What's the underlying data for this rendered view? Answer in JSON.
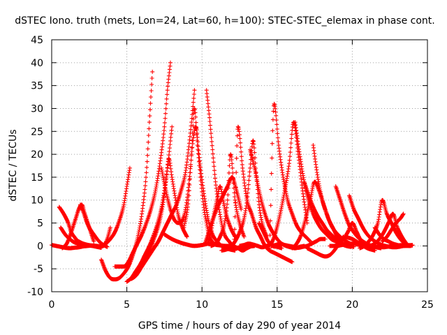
{
  "chart_data": {
    "type": "scatter",
    "title": "dSTEC Iono. truth (mets, Lon=24, Lat=60, h=100): STEC-STEC_elemax in phase cont.",
    "xlabel": "GPS time / hours of day 290 of year 2014",
    "ylabel": "dSTEC  / TECUs",
    "xlim": [
      0,
      25
    ],
    "ylim": [
      -10,
      45
    ],
    "xticks": [
      "0",
      "5",
      "10",
      "15",
      "20",
      "25"
    ],
    "yticks": [
      "-10",
      "-5",
      "0",
      "5",
      "10",
      "15",
      "20",
      "25",
      "30",
      "35",
      "40",
      "45"
    ],
    "grid": true,
    "marker": "+",
    "color": "#ff0000",
    "series": [
      {
        "x": [
          0.0,
          0.3,
          0.6,
          0.9,
          1.2,
          1.5,
          1.8,
          2.1,
          2.4,
          2.7,
          3.0,
          3.3,
          3.6,
          3.9,
          4.2,
          4.5,
          4.8,
          5.0,
          5.2
        ],
        "y": [
          0.2,
          0.0,
          -0.2,
          -0.4,
          -0.5,
          -0.4,
          -0.3,
          -0.1,
          0.0,
          0.1,
          0.0,
          -0.1,
          0.5,
          1.5,
          3,
          5.5,
          9,
          13,
          17
        ]
      },
      {
        "x": [
          0.5,
          0.8,
          1.1,
          1.3,
          1.5,
          1.7,
          1.9,
          2.1,
          2.3,
          2.6,
          2.9,
          3.2,
          3.5,
          3.7,
          3.9
        ],
        "y": [
          8.5,
          7,
          5,
          3,
          2,
          1.2,
          0.8,
          0.5,
          0.3,
          0.1,
          0.0,
          -0.1,
          0.2,
          1.5,
          4
        ]
      },
      {
        "x": [
          0.6,
          0.9,
          1.2,
          1.5,
          1.8,
          2.1,
          2.4,
          2.7,
          3.0,
          3.3
        ],
        "y": [
          4,
          2.5,
          1.5,
          0.8,
          0.5,
          0.3,
          0.1,
          0.0,
          -0.2,
          -0.4
        ]
      },
      {
        "x": [
          0.7,
          1.0,
          1.3,
          1.6,
          1.8,
          2.0,
          2.2,
          2.5,
          2.8
        ],
        "y": [
          -0.5,
          0.5,
          3,
          6,
          8,
          9,
          7,
          4,
          1
        ]
      },
      {
        "x": [
          1.9,
          2.1,
          2.3,
          2.5,
          2.8,
          3.1,
          3.4,
          3.7
        ],
        "y": [
          9,
          7.5,
          5.5,
          4,
          2.5,
          1.2,
          0.3,
          -0.2
        ]
      },
      {
        "x": [
          3.3,
          3.6,
          3.9,
          4.2,
          4.5,
          4.8,
          5.1,
          5.4,
          5.7,
          6.0,
          6.3,
          6.5,
          6.7
        ],
        "y": [
          -3,
          -5.5,
          -7,
          -7.3,
          -7,
          -6,
          -4.5,
          -2,
          1.5,
          7,
          16,
          27,
          38
        ]
      },
      {
        "x": [
          4.2,
          4.5,
          4.8,
          5.1,
          5.4,
          5.7,
          6.0,
          6.3,
          6.6,
          6.9,
          7.2,
          7.5,
          7.7,
          7.9
        ],
        "y": [
          -4.5,
          -4.5,
          -4.5,
          -3.5,
          -1.5,
          0.5,
          2.5,
          5,
          8,
          12,
          18,
          26,
          34,
          40
        ]
      },
      {
        "x": [
          5.0,
          5.3,
          5.6,
          5.9,
          6.2,
          6.5,
          6.8,
          7.1,
          7.4,
          7.7,
          8.0
        ],
        "y": [
          -7.8,
          -7,
          -5.5,
          -4,
          -2,
          0,
          2.5,
          5.5,
          10,
          17,
          26
        ]
      },
      {
        "x": [
          5.3,
          5.6,
          5.9,
          6.2,
          6.5,
          6.8,
          7.1,
          7.4,
          7.7,
          8.0,
          8.3,
          8.6,
          8.9,
          9.1,
          9.3,
          9.5
        ],
        "y": [
          -7.2,
          -6.5,
          -5,
          -3.5,
          -2,
          -0.5,
          1,
          3,
          5,
          7,
          9,
          12,
          16,
          21,
          27,
          34
        ]
      },
      {
        "x": [
          5.6,
          5.9,
          6.2,
          6.5,
          6.8,
          7.1,
          7.4,
          7.6,
          7.8,
          8.0,
          8.2,
          8.4,
          8.7,
          9.0
        ],
        "y": [
          -6.5,
          -5,
          -3,
          -1,
          1.5,
          4.5,
          9,
          14,
          19,
          15,
          11,
          7,
          4,
          2
        ]
      },
      {
        "x": [
          7.3,
          7.6,
          7.9,
          8.2,
          8.5,
          8.8,
          9.0,
          9.2,
          9.4,
          9.6,
          9.8,
          10.1,
          10.4,
          10.7,
          11.0,
          11.3,
          11.6,
          11.9,
          12.2
        ],
        "y": [
          17,
          12,
          8,
          5.5,
          5,
          6.5,
          10,
          16,
          23,
          26,
          20,
          12,
          6,
          2.5,
          1,
          0,
          -0.5,
          -0.8,
          -1
        ]
      },
      {
        "x": [
          7.5,
          8.0,
          8.5,
          9.0,
          9.5,
          10.0,
          10.5,
          11.0,
          11.5,
          12.0,
          12.5,
          13.0,
          13.5
        ],
        "y": [
          2.5,
          1.5,
          0.8,
          0.3,
          0.0,
          0.2,
          0.5,
          0.2,
          0.0,
          -0.3,
          -0.5,
          -0.2,
          0.0
        ]
      },
      {
        "x": [
          8.8,
          9.1,
          9.3,
          9.5,
          9.7,
          9.9,
          10.1,
          10.3,
          10.5,
          10.8
        ],
        "y": [
          4,
          10,
          20,
          30,
          22,
          15,
          9,
          5,
          2,
          0.5
        ]
      },
      {
        "x": [
          10.3,
          10.5,
          10.7,
          10.9,
          11.1,
          11.3,
          11.5,
          11.8,
          12.1,
          12.4,
          12.7,
          13.0,
          13.3
        ],
        "y": [
          34,
          28,
          21,
          14,
          9,
          5,
          2.5,
          1,
          0,
          -0.5,
          -1,
          -0.5,
          0.0
        ]
      },
      {
        "x": [
          10.4,
          10.6,
          10.8,
          11.0,
          11.2,
          11.4,
          11.6,
          11.9,
          12.2
        ],
        "y": [
          0.5,
          3,
          7,
          10,
          13,
          10,
          7,
          4,
          2
        ]
      },
      {
        "x": [
          10.2,
          10.5,
          10.8,
          11.1,
          11.4,
          11.7,
          12.0,
          12.3,
          12.6
        ],
        "y": [
          0.5,
          3.5,
          6.5,
          9,
          11,
          13,
          15,
          12,
          8
        ]
      },
      {
        "x": [
          10.6,
          10.9,
          11.2,
          11.5,
          11.7,
          11.9,
          12.2,
          12.5,
          12.8
        ],
        "y": [
          0,
          0.5,
          2,
          5,
          10,
          20,
          10,
          5,
          2
        ]
      },
      {
        "x": [
          11.5,
          11.8,
          12.1,
          12.4,
          12.7,
          13.0,
          13.3,
          13.6,
          13.9,
          14.2,
          14.5,
          14.8,
          15.1,
          15.4,
          15.7,
          16.0
        ],
        "y": [
          0,
          0,
          -0.5,
          26,
          17,
          10,
          7,
          4,
          2,
          0,
          -1,
          -1.5,
          -2,
          -2.5,
          -3,
          -3.5
        ]
      },
      {
        "x": [
          11.3,
          11.6,
          11.9,
          12.2,
          12.5,
          12.8,
          13.0,
          13.2,
          13.4,
          13.6,
          13.8,
          14.0,
          14.3
        ],
        "y": [
          -1,
          -0.8,
          -0.3,
          1,
          3,
          6,
          10,
          17,
          23,
          16,
          9,
          5,
          2
        ]
      },
      {
        "x": [
          12.5,
          12.8,
          13.1,
          13.4,
          13.7,
          14.0,
          14.3,
          14.6,
          14.9,
          15.2,
          15.5,
          15.8,
          16.1,
          16.4,
          16.7,
          17.0
        ],
        "y": [
          0.0,
          0.2,
          0.5,
          0.3,
          0.0,
          -0.3,
          0.0,
          0.5,
          3,
          7,
          12,
          18,
          27,
          20,
          12,
          5
        ]
      },
      {
        "x": [
          13.2,
          13.5,
          13.8,
          14.1,
          14.4,
          14.7,
          15.0,
          15.3,
          15.6,
          15.9,
          16.2,
          16.5,
          16.8
        ],
        "y": [
          21,
          17,
          12,
          8,
          5,
          3,
          1.5,
          0.5,
          0.0,
          -0.3,
          -0.5,
          -0.2,
          0.0
        ]
      },
      {
        "x": [
          13.8,
          14.1,
          14.4,
          14.7,
          15.0,
          15.3
        ],
        "y": [
          5,
          3,
          1,
          0,
          -0.2,
          -0.5
        ]
      },
      {
        "x": [
          14.5,
          14.8,
          15.1,
          15.4,
          15.7,
          16.0,
          16.3,
          16.6,
          16.9,
          17.2
        ],
        "y": [
          -0.5,
          31,
          22,
          15,
          10,
          7,
          4.5,
          3,
          2,
          1
        ]
      },
      {
        "x": [
          14.6,
          14.9,
          15.2,
          15.5,
          15.8,
          16.1,
          16.4,
          16.7,
          17.0,
          17.3,
          17.6,
          17.9,
          18.2
        ],
        "y": [
          0,
          0.2,
          0.5,
          0.2,
          0,
          -0.2,
          -0.4,
          -0.2,
          0,
          0.5,
          1,
          1.5,
          1.5
        ]
      },
      {
        "x": [
          16.0,
          16.3,
          16.6,
          16.9,
          17.2,
          17.5,
          17.8,
          18.1,
          18.4,
          18.7,
          19.0,
          19.3,
          19.6,
          19.9
        ],
        "y": [
          -0.5,
          0.5,
          2.5,
          6,
          10,
          14,
          12,
          9,
          6,
          4,
          2,
          0.5,
          0,
          -0.2
        ]
      },
      {
        "x": [
          16.2,
          16.5,
          16.8,
          17.1,
          17.4,
          17.7,
          18.0,
          18.3,
          18.6,
          18.9,
          19.2,
          19.5,
          19.8
        ],
        "y": [
          27,
          20,
          14,
          10,
          7,
          5,
          3.5,
          2.5,
          1.5,
          1,
          0.5,
          0.2,
          0
        ]
      },
      {
        "x": [
          16.8,
          17.1,
          17.4,
          17.7,
          18.0,
          18.3,
          18.6,
          18.9,
          19.2,
          19.5,
          19.8,
          20.1
        ],
        "y": [
          14,
          11,
          8.5,
          6.5,
          5,
          3.5,
          2.5,
          1.5,
          0.8,
          0.3,
          0,
          -0.2
        ]
      },
      {
        "x": [
          17.0,
          17.3,
          17.6,
          17.9,
          18.2,
          18.5,
          18.8,
          19.1,
          19.4
        ],
        "y": [
          -0.5,
          -1,
          -1.5,
          -2,
          -2.3,
          -2,
          -1,
          0.5,
          2
        ]
      },
      {
        "x": [
          17.4,
          17.7,
          18.0,
          18.3,
          18.6,
          18.9,
          19.2,
          19.5,
          19.8,
          20.1
        ],
        "y": [
          22,
          15,
          10,
          7,
          4.5,
          3,
          2,
          1.2,
          0.6,
          0.2
        ]
      },
      {
        "x": [
          18.5,
          18.8,
          19.1,
          19.4,
          19.7,
          20.0,
          20.3,
          20.6,
          20.9
        ],
        "y": [
          0,
          0,
          0.5,
          1.5,
          3,
          5,
          3,
          1,
          0
        ]
      },
      {
        "x": [
          18.9,
          19.2,
          19.5,
          19.8,
          20.1,
          20.4,
          20.7,
          21.0,
          21.3,
          21.6,
          21.9
        ],
        "y": [
          13,
          10,
          7,
          4.5,
          3,
          1.8,
          1,
          0.4,
          0,
          -0.3,
          -0.5
        ]
      },
      {
        "x": [
          19.8,
          20.1,
          20.4,
          20.7,
          21.0,
          21.3,
          21.6,
          21.9,
          22.2,
          22.5,
          22.8,
          23.1,
          23.4,
          23.7,
          24.0
        ],
        "y": [
          11,
          8,
          6,
          4,
          2.5,
          1.5,
          0.8,
          0.3,
          0,
          -0.2,
          -0.3,
          -0.2,
          0,
          0.1,
          0.2
        ]
      },
      {
        "x": [
          19.0,
          19.5,
          20.0,
          20.5,
          21.0,
          21.5,
          22.0,
          22.5,
          23.0,
          23.5,
          24.0
        ],
        "y": [
          0,
          0.3,
          0.5,
          0.2,
          0,
          -0.2,
          -0.3,
          -0.1,
          0.1,
          0.2,
          0.1
        ]
      },
      {
        "x": [
          20.5,
          20.8,
          21.1,
          21.4,
          21.7,
          22.0,
          22.3,
          22.6,
          22.9,
          23.2,
          23.5,
          23.8
        ],
        "y": [
          -0.5,
          0,
          1,
          2.5,
          5,
          10,
          7,
          5,
          3,
          1.5,
          0.5,
          0
        ]
      },
      {
        "x": [
          21.2,
          21.5,
          21.8,
          22.1,
          22.4,
          22.7,
          23.0,
          23.3,
          23.6
        ],
        "y": [
          0,
          0.5,
          1.5,
          3,
          5,
          7,
          4,
          2,
          0.5
        ]
      },
      {
        "x": [
          21.5,
          21.8,
          22.1,
          22.4,
          22.7,
          23.0,
          23.3,
          23.6,
          23.9
        ],
        "y": [
          4,
          2.5,
          1.5,
          1,
          0.5,
          0.2,
          0,
          0,
          0
        ]
      },
      {
        "x": [
          22.0,
          22.3,
          22.6,
          22.9,
          23.2,
          23.4
        ],
        "y": [
          1,
          2,
          3.5,
          5,
          6,
          7
        ]
      },
      {
        "x": [
          19.5,
          20.0,
          20.5,
          21.0,
          21.5
        ],
        "y": [
          2,
          1.5,
          0.5,
          -0.5,
          -1
        ]
      }
    ]
  }
}
